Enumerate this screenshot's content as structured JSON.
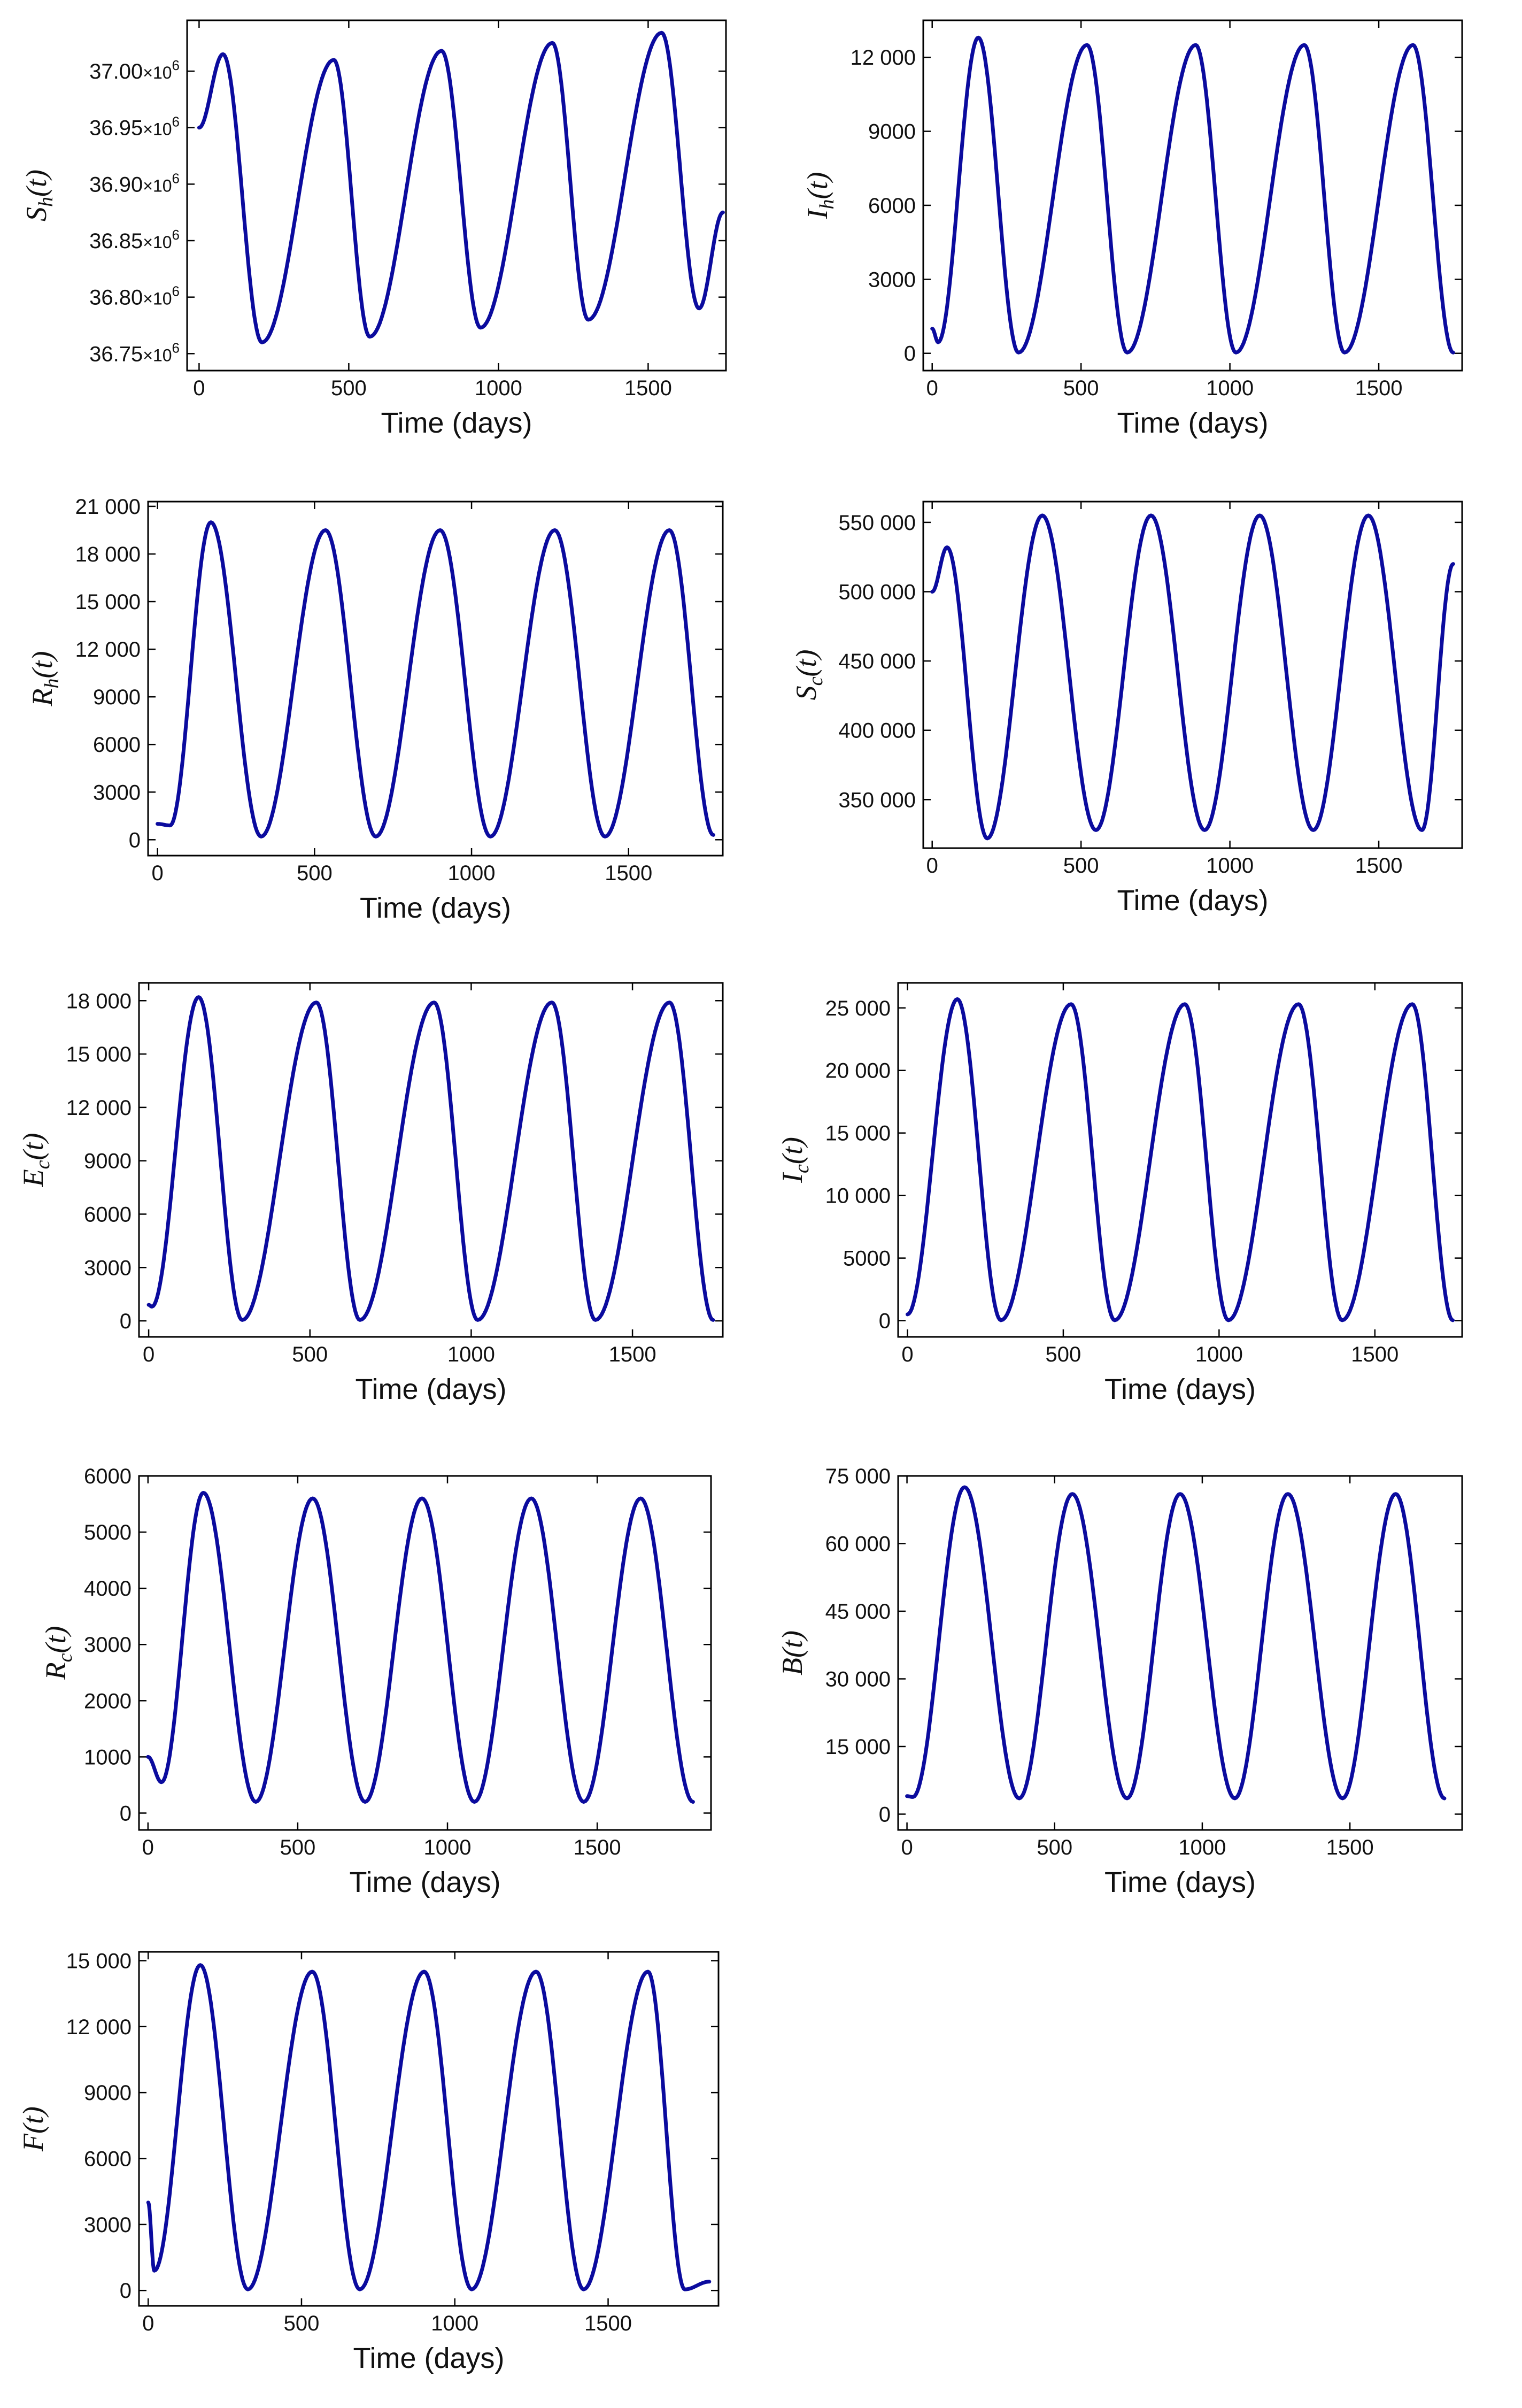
{
  "figure": {
    "line_color": "#0b0b9e",
    "frame_color": "#000000",
    "background": "#ffffff"
  },
  "chart_data": [
    {
      "id": "Sh",
      "type": "line",
      "ylabel_main": "S",
      "ylabel_sub": "h",
      "ylabel_tail": "(t)",
      "xlabel": "Time (days)",
      "xlim": [
        -40,
        1760
      ],
      "xticks": [
        0,
        500,
        1000,
        1500
      ],
      "xtick_labels": [
        "0",
        "500",
        "1000",
        "1500"
      ],
      "ylim": [
        36735000,
        37045000
      ],
      "yticks": [
        36750000,
        36800000,
        36850000,
        36900000,
        36950000,
        37000000
      ],
      "ytick_labels": [
        "36.75",
        "36.80",
        "36.85",
        "36.90",
        "36.95",
        "37.00"
      ],
      "ytick_suffix_base": "×10",
      "ytick_suffix_exp": "6",
      "series": [
        {
          "name": "S_h(t)",
          "x": [
            0,
            80,
            210,
            450,
            570,
            810,
            940,
            1180,
            1300,
            1545,
            1670,
            1750
          ],
          "y": [
            36950000,
            37015000,
            36760000,
            37010000,
            36765000,
            37018000,
            36773000,
            37025000,
            36780000,
            37034000,
            36790000,
            36875000
          ]
        }
      ]
    },
    {
      "id": "Ih",
      "type": "line",
      "ylabel_main": "I",
      "ylabel_sub": "h",
      "ylabel_tail": "(t)",
      "xlabel": "Time (days)",
      "xlim": [
        -30,
        1780
      ],
      "xticks": [
        0,
        500,
        1000,
        1500
      ],
      "xtick_labels": [
        "0",
        "500",
        "1000",
        "1500"
      ],
      "ylim": [
        -700,
        13500
      ],
      "yticks": [
        0,
        3000,
        6000,
        9000,
        12000
      ],
      "ytick_labels": [
        "0",
        "3000",
        "6000",
        "9000",
        "12 000"
      ],
      "series": [
        {
          "name": "I_h(t)",
          "x": [
            0,
            20,
            155,
            290,
            520,
            655,
            885,
            1020,
            1250,
            1385,
            1615,
            1750
          ],
          "y": [
            1000,
            450,
            12800,
            30,
            12500,
            30,
            12500,
            30,
            12500,
            30,
            12500,
            30
          ]
        }
      ]
    },
    {
      "id": "Rh",
      "type": "line",
      "ylabel_main": "R",
      "ylabel_sub": "h",
      "ylabel_tail": "(t)",
      "xlabel": "Time (days)",
      "xlim": [
        -30,
        1800
      ],
      "xticks": [
        0,
        500,
        1000,
        1500
      ],
      "xtick_labels": [
        "0",
        "500",
        "1000",
        "1500"
      ],
      "ylim": [
        -1000,
        21300
      ],
      "yticks": [
        0,
        3000,
        6000,
        9000,
        12000,
        15000,
        18000,
        21000
      ],
      "ytick_labels": [
        "0",
        "3000",
        "6000",
        "9000",
        "12 000",
        "15 000",
        "18 000",
        "21 000"
      ],
      "series": [
        {
          "name": "R_h(t)",
          "x": [
            0,
            40,
            170,
            330,
            535,
            695,
            900,
            1060,
            1265,
            1425,
            1630,
            1770
          ],
          "y": [
            1000,
            900,
            20000,
            200,
            19500,
            200,
            19500,
            200,
            19500,
            200,
            19500,
            300
          ]
        }
      ]
    },
    {
      "id": "Sc",
      "type": "line",
      "ylabel_main": "S",
      "ylabel_sub": "c",
      "ylabel_tail": "(t)",
      "xlabel": "Time (days)",
      "xlim": [
        -30,
        1780
      ],
      "xticks": [
        0,
        500,
        1000,
        1500
      ],
      "xtick_labels": [
        "0",
        "500",
        "1000",
        "1500"
      ],
      "ylim": [
        315000,
        565000
      ],
      "yticks": [
        350000,
        400000,
        450000,
        500000,
        550000
      ],
      "ytick_labels": [
        "350 000",
        "400 000",
        "450 000",
        "500 000",
        "550 000"
      ],
      "series": [
        {
          "name": "S_c(t)",
          "x": [
            0,
            50,
            185,
            370,
            550,
            735,
            915,
            1100,
            1280,
            1465,
            1645,
            1750
          ],
          "y": [
            500000,
            532000,
            322000,
            555000,
            328000,
            555000,
            328000,
            555000,
            328000,
            555000,
            328000,
            520000
          ]
        }
      ]
    },
    {
      "id": "Ec",
      "type": "line",
      "ylabel_main": "E",
      "ylabel_sub": "c",
      "ylabel_tail": "(t)",
      "xlabel": "Time (days)",
      "xlim": [
        -30,
        1780
      ],
      "xticks": [
        0,
        500,
        1000,
        1500
      ],
      "xtick_labels": [
        "0",
        "500",
        "1000",
        "1500"
      ],
      "ylim": [
        -900,
        19000
      ],
      "yticks": [
        0,
        3000,
        6000,
        9000,
        12000,
        15000,
        18000
      ],
      "ytick_labels": [
        "0",
        "3000",
        "6000",
        "9000",
        "12 000",
        "15 000",
        "18 000"
      ],
      "series": [
        {
          "name": "E_c(t)",
          "x": [
            0,
            10,
            155,
            290,
            520,
            655,
            885,
            1020,
            1250,
            1385,
            1615,
            1750
          ],
          "y": [
            900,
            800,
            18200,
            50,
            17900,
            50,
            17900,
            50,
            17900,
            50,
            17900,
            50
          ]
        }
      ]
    },
    {
      "id": "Ic",
      "type": "line",
      "ylabel_main": "I",
      "ylabel_sub": "c",
      "ylabel_tail": "(t)",
      "xlabel": "Time (days)",
      "xlim": [
        -30,
        1780
      ],
      "xticks": [
        0,
        500,
        1000,
        1500
      ],
      "xtick_labels": [
        "0",
        "500",
        "1000",
        "1500"
      ],
      "ylim": [
        -1300,
        27000
      ],
      "yticks": [
        0,
        5000,
        10000,
        15000,
        20000,
        25000
      ],
      "ytick_labels": [
        "0",
        "5000",
        "10 000",
        "15 000",
        "20 000",
        "25 000"
      ],
      "series": [
        {
          "name": "I_c(t)",
          "x": [
            0,
            160,
            300,
            525,
            665,
            890,
            1030,
            1255,
            1395,
            1620,
            1750
          ],
          "y": [
            500,
            25700,
            30,
            25300,
            30,
            25300,
            30,
            25300,
            30,
            25300,
            30
          ]
        }
      ]
    },
    {
      "id": "Rc",
      "type": "line",
      "ylabel_main": "R",
      "ylabel_sub": "c",
      "ylabel_tail": "(t)",
      "xlabel": "Time (days)",
      "xlim": [
        -30,
        1880
      ],
      "xticks": [
        0,
        500,
        1000,
        1500
      ],
      "xtick_labels": [
        "0",
        "500",
        "1000",
        "1500"
      ],
      "ylim": [
        -300,
        6000
      ],
      "yticks": [
        0,
        1000,
        2000,
        3000,
        4000,
        5000,
        6000
      ],
      "ytick_labels": [
        "0",
        "1000",
        "2000",
        "3000",
        "4000",
        "5000",
        "6000"
      ],
      "series": [
        {
          "name": "R_c(t)",
          "x": [
            0,
            45,
            185,
            360,
            550,
            725,
            915,
            1090,
            1280,
            1455,
            1645,
            1820
          ],
          "y": [
            1000,
            550,
            5700,
            200,
            5600,
            200,
            5600,
            200,
            5600,
            200,
            5600,
            200
          ]
        }
      ]
    },
    {
      "id": "B",
      "type": "line",
      "ylabel_main": "B",
      "ylabel_sub": "",
      "ylabel_tail": "(t)",
      "xlabel": "Time (days)",
      "xlim": [
        -30,
        1880
      ],
      "xticks": [
        0,
        500,
        1000,
        1500
      ],
      "xtick_labels": [
        "0",
        "500",
        "1000",
        "1500"
      ],
      "ylim": [
        -3500,
        75000
      ],
      "yticks": [
        0,
        15000,
        30000,
        45000,
        60000,
        75000
      ],
      "ytick_labels": [
        "0",
        "15 000",
        "30 000",
        "45 000",
        "60 000",
        "75 000"
      ],
      "series": [
        {
          "name": "B(t)",
          "x": [
            0,
            20,
            195,
            380,
            560,
            745,
            925,
            1110,
            1290,
            1475,
            1655,
            1820
          ],
          "y": [
            4000,
            3800,
            72500,
            3500,
            71000,
            3500,
            71000,
            3500,
            71000,
            3500,
            71000,
            3500
          ]
        }
      ]
    },
    {
      "id": "F",
      "type": "line",
      "ylabel_main": "F",
      "ylabel_sub": "",
      "ylabel_tail": "(t)",
      "xlabel": "Time (days)",
      "xlim": [
        -30,
        1860
      ],
      "xticks": [
        0,
        500,
        1000,
        1500
      ],
      "xtick_labels": [
        "0",
        "500",
        "1000",
        "1500"
      ],
      "ylim": [
        -700,
        15400
      ],
      "yticks": [
        0,
        3000,
        6000,
        9000,
        12000,
        15000
      ],
      "ytick_labels": [
        "0",
        "3000",
        "6000",
        "9000",
        "12 000",
        "15 000"
      ],
      "series": [
        {
          "name": "F(t)",
          "x": [
            0,
            20,
            170,
            325,
            535,
            690,
            900,
            1055,
            1265,
            1420,
            1630,
            1750,
            1830
          ],
          "y": [
            4000,
            900,
            14800,
            50,
            14500,
            50,
            14500,
            50,
            14500,
            50,
            14500,
            50,
            400
          ]
        }
      ]
    }
  ]
}
